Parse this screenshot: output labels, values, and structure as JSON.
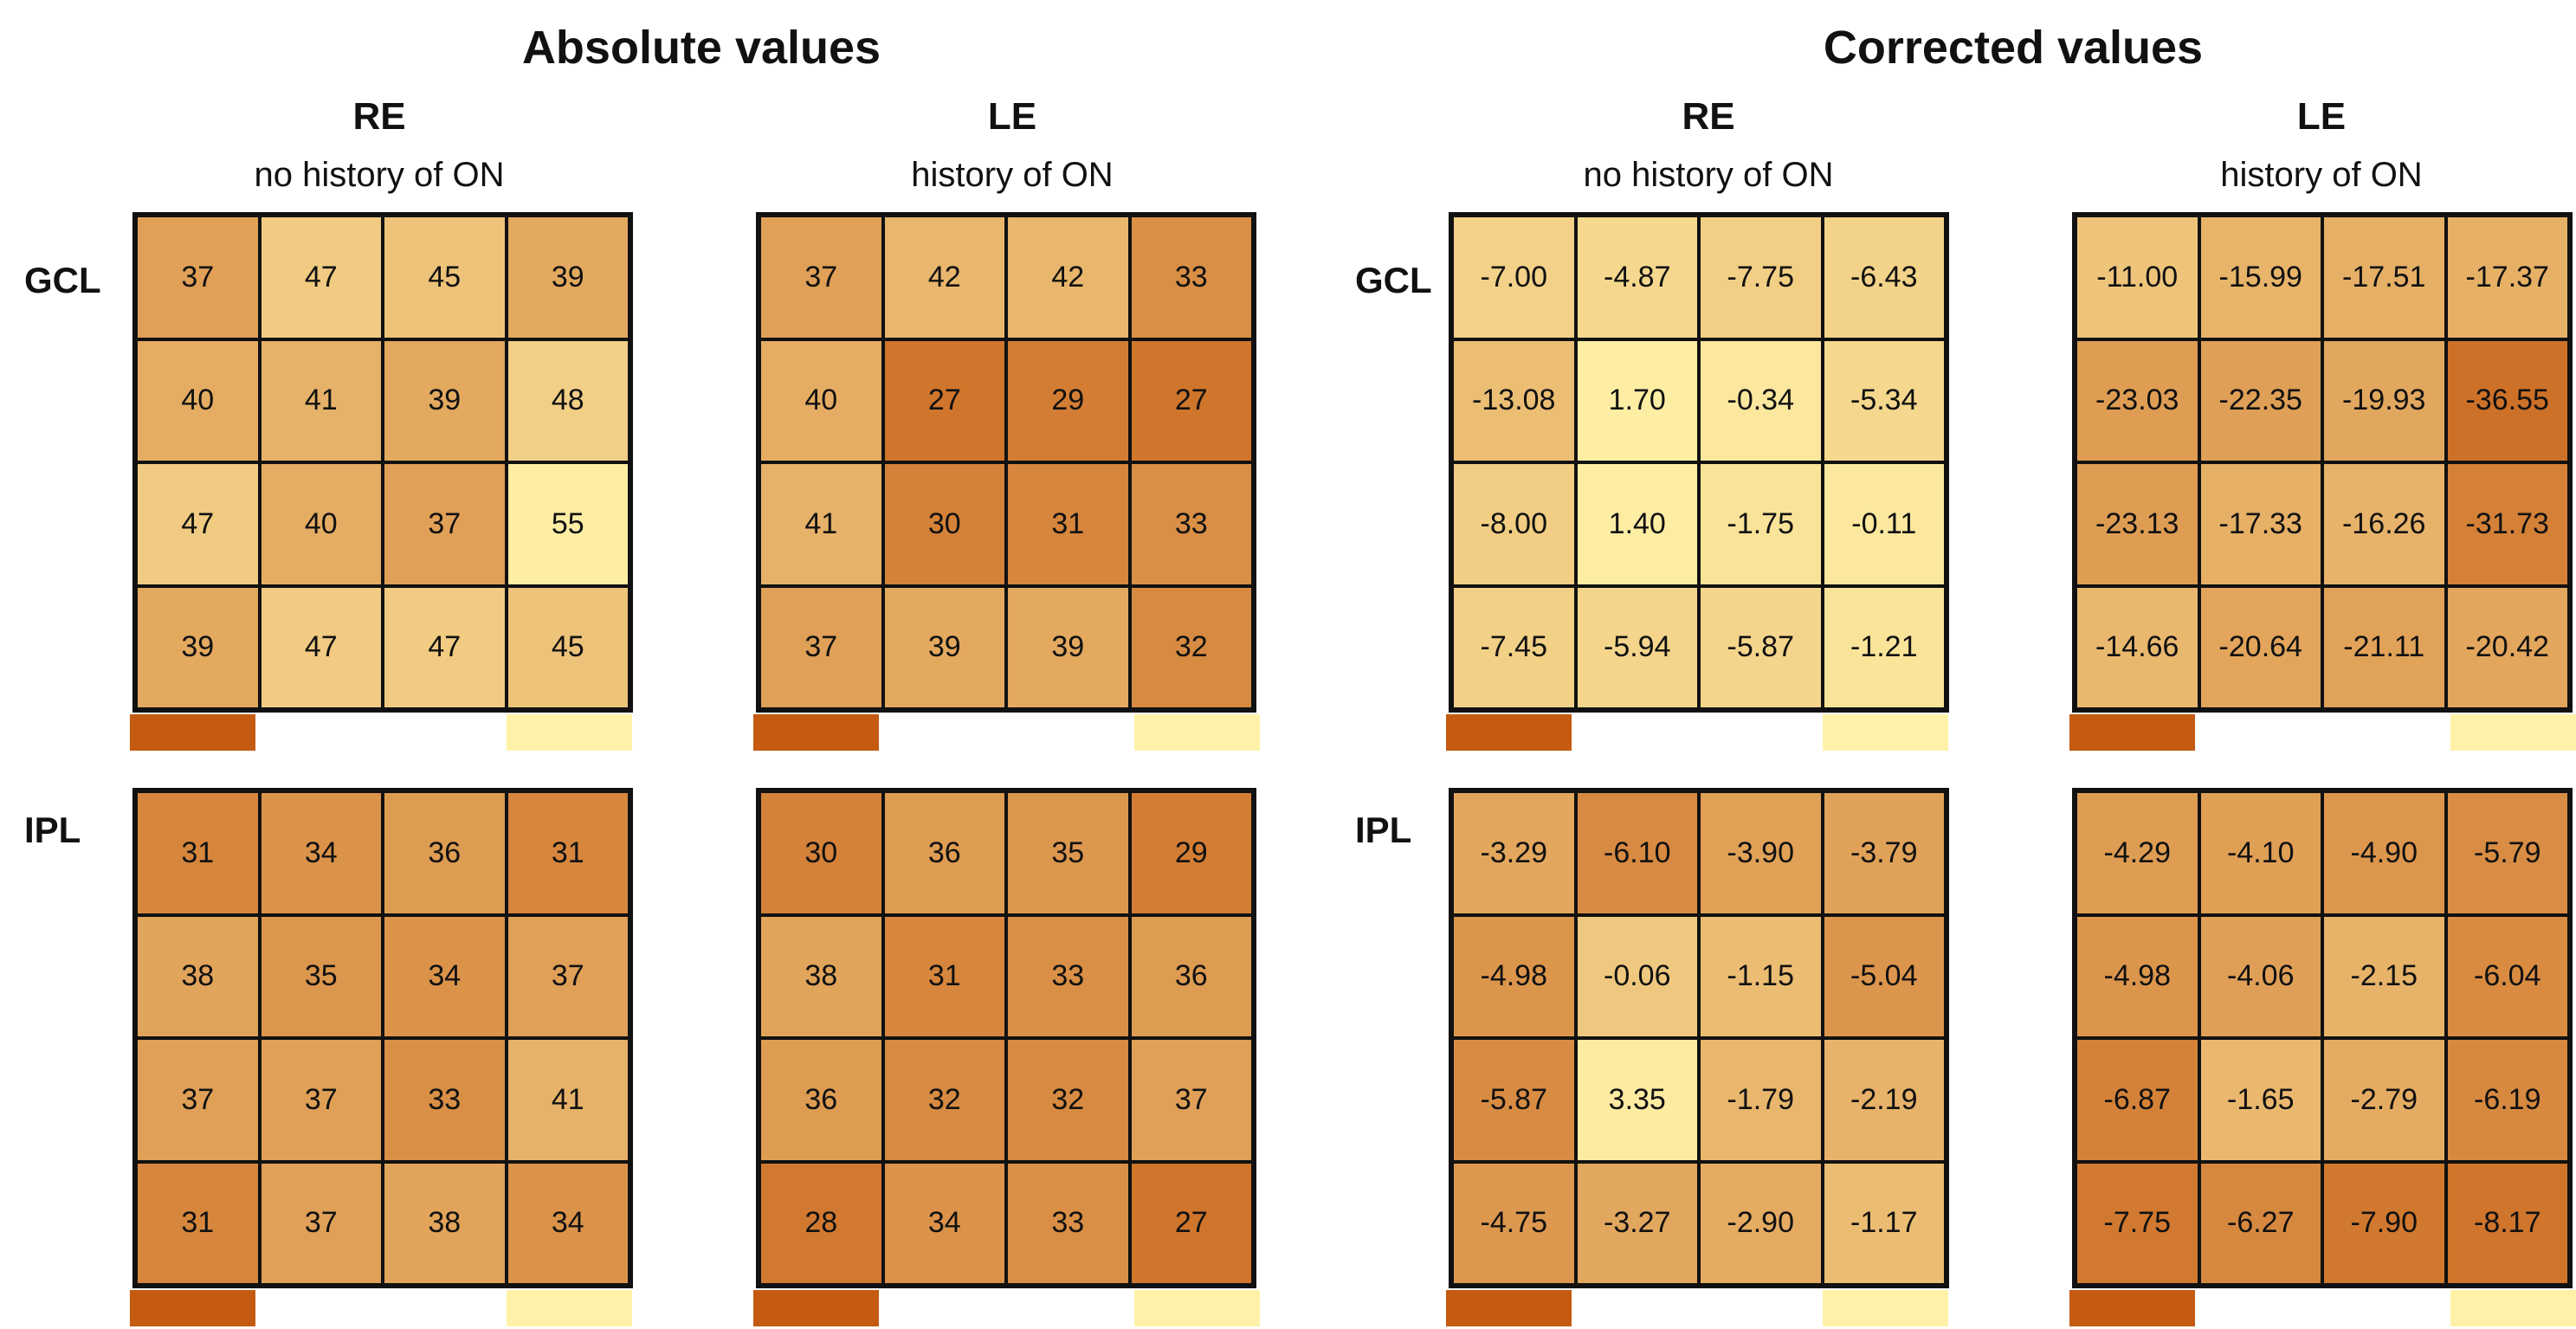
{
  "chart_data": {
    "type": "heatmap",
    "sections": [
      {
        "title": "Absolute values",
        "panels": [
          {
            "eye": "RE",
            "history": "no history of ON",
            "GCL": [
              [
                37,
                47,
                45,
                39
              ],
              [
                40,
                41,
                39,
                48
              ],
              [
                47,
                40,
                37,
                55
              ],
              [
                39,
                47,
                47,
                45
              ]
            ],
            "IPL": [
              [
                31,
                34,
                36,
                31
              ],
              [
                38,
                35,
                34,
                37
              ],
              [
                37,
                37,
                33,
                41
              ],
              [
                31,
                37,
                38,
                34
              ]
            ]
          },
          {
            "eye": "LE",
            "history": "history of ON",
            "GCL": [
              [
                37,
                42,
                42,
                33
              ],
              [
                40,
                27,
                29,
                27
              ],
              [
                41,
                30,
                31,
                33
              ],
              [
                37,
                39,
                39,
                32
              ]
            ],
            "IPL": [
              [
                30,
                36,
                35,
                29
              ],
              [
                38,
                31,
                33,
                36
              ],
              [
                36,
                32,
                32,
                37
              ],
              [
                28,
                34,
                33,
                27
              ]
            ]
          }
        ]
      },
      {
        "title": "Corrected values",
        "panels": [
          {
            "eye": "RE",
            "history": "no history of ON",
            "GCL": [
              [
                "-7.00",
                "-4.87",
                "-7.75",
                "-6.43"
              ],
              [
                "-13.08",
                "1.70",
                "-0.34",
                "-5.34"
              ],
              [
                "-8.00",
                "1.40",
                "-1.75",
                "-0.11"
              ],
              [
                "-7.45",
                "-5.94",
                "-5.87",
                "-1.21"
              ]
            ],
            "IPL": [
              [
                "-3.29",
                "-6.10",
                "-3.90",
                "-3.79"
              ],
              [
                "-4.98",
                "-0.06",
                "-1.15",
                "-5.04"
              ],
              [
                "-5.87",
                "3.35",
                "-1.79",
                "-2.19"
              ],
              [
                "-4.75",
                "-3.27",
                "-2.90",
                "-1.17"
              ]
            ]
          },
          {
            "eye": "LE",
            "history": "history of ON",
            "GCL": [
              [
                "-11.00",
                "-15.99",
                "-17.51",
                "-17.37"
              ],
              [
                "-23.03",
                "-22.35",
                "-19.93",
                "-36.55"
              ],
              [
                "-23.13",
                "-17.33",
                "-16.26",
                "-31.73"
              ],
              [
                "-14.66",
                "-20.64",
                "-21.11",
                "-20.42"
              ]
            ],
            "IPL": [
              [
                "-4.29",
                "-4.10",
                "-4.90",
                "-5.79"
              ],
              [
                "-4.98",
                "-4.06",
                "-2.15",
                "-6.04"
              ],
              [
                "-6.87",
                "-1.65",
                "-2.79",
                "-6.19"
              ],
              [
                "-7.75",
                "-6.27",
                "-7.90",
                "-8.17"
              ]
            ]
          }
        ]
      }
    ],
    "row_labels": [
      "GCL",
      "IPL"
    ],
    "colors": {
      "low": "#C55A11",
      "high": "#FFF2A8"
    }
  }
}
